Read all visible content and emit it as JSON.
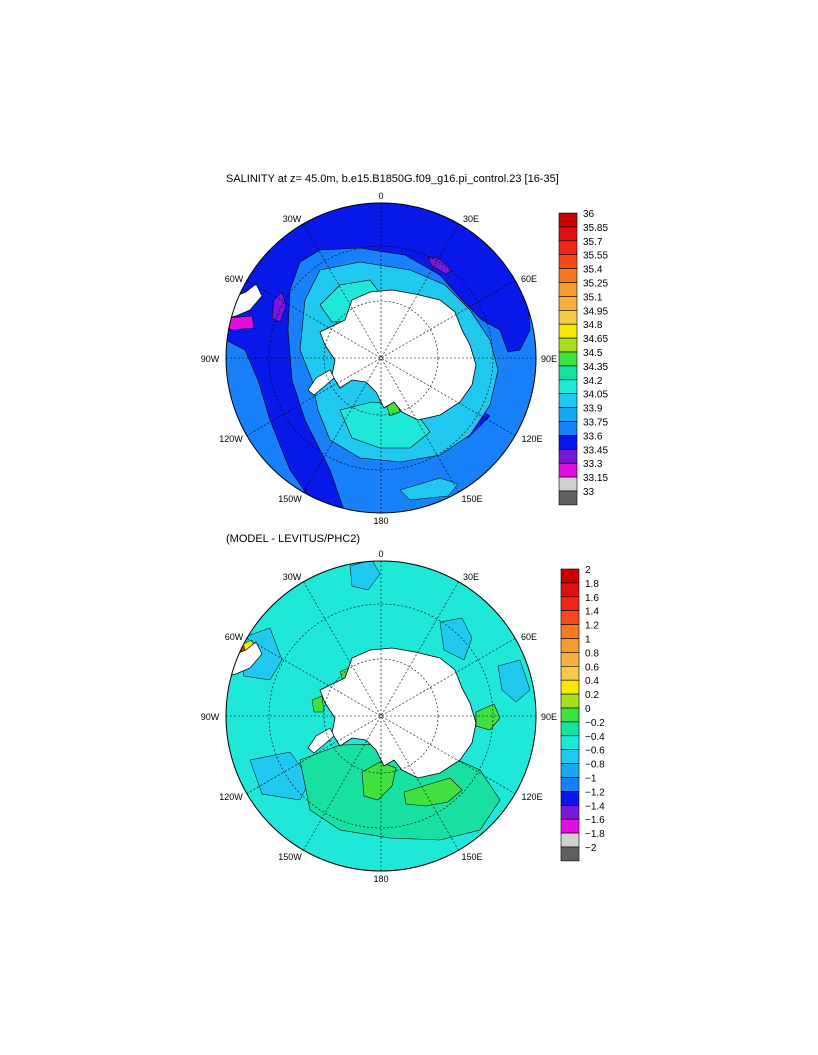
{
  "panels": [
    {
      "title": "SALINITY at z=  45.0m, b.e15.B1850G.f09_g16.pi_control.23 [16-35]",
      "lon_labels": [
        "0",
        "30E",
        "60E",
        "90E",
        "120E",
        "150E",
        "180",
        "150W",
        "120W",
        "90W",
        "60W",
        "30W"
      ],
      "colorbar": {
        "labels": [
          "36",
          "35.85",
          "35.7",
          "35.55",
          "35.4",
          "35.25",
          "35.1",
          "34.95",
          "34.8",
          "34.65",
          "34.5",
          "34.35",
          "34.2",
          "34.05",
          "33.9",
          "33.75",
          "33.6",
          "33.45",
          "33.3",
          "33.15",
          "33"
        ],
        "colors": [
          "#c80000",
          "#e01010",
          "#f02818",
          "#f84a18",
          "#f87a20",
          "#f89a30",
          "#f8b040",
          "#f8c848",
          "#f8e800",
          "#a8e020",
          "#40e040",
          "#18e0a0",
          "#20e8d8",
          "#20c8f0",
          "#18a8f0",
          "#1880f8",
          "#0818e8",
          "#7818d8",
          "#e010e0",
          "#d0d0d0",
          "#606060"
        ]
      }
    },
    {
      "title": "(MODEL - LEVITUS/PHC2)",
      "lon_labels": [
        "0",
        "30E",
        "60E",
        "90E",
        "120E",
        "150E",
        "180",
        "150W",
        "120W",
        "90W",
        "60W",
        "30W"
      ],
      "colorbar": {
        "labels": [
          "2",
          "1.8",
          "1.6",
          "1.4",
          "1.2",
          "1",
          "0.8",
          "0.6",
          "0.4",
          "0.2",
          "0",
          "−0.2",
          "−0.4",
          "−0.6",
          "−0.8",
          "−1",
          "−1.2",
          "−1.4",
          "−1.6",
          "−1.8",
          "−2"
        ],
        "colors": [
          "#c80000",
          "#e01010",
          "#f02818",
          "#f84a18",
          "#f87a20",
          "#f89a30",
          "#f8b040",
          "#f8c848",
          "#f8e800",
          "#a8e020",
          "#40e040",
          "#18e0a0",
          "#20e8d8",
          "#20c8f0",
          "#18a8f0",
          "#1880f8",
          "#0818e8",
          "#7818d8",
          "#e010e0",
          "#d0d0d0",
          "#606060"
        ]
      }
    }
  ],
  "colors": {
    "salinity_background": "#1880f8",
    "salinity_outer_band": "#0818e8",
    "salinity_coastal": "#20c8f0",
    "salinity_shelf": "#20e8d8",
    "diff_background": "#20e8d8",
    "diff_mid": "#18e0a0",
    "diff_positive": "#40e040",
    "land": "#ffffff"
  }
}
